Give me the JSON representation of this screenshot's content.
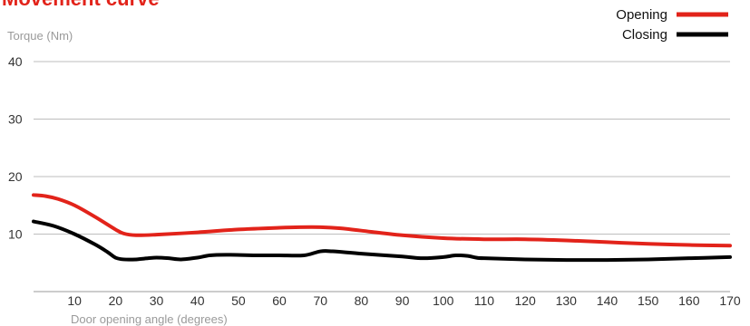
{
  "chart_data": {
    "type": "line",
    "title": "Movement curve",
    "xlabel": "Door opening angle (degrees)",
    "ylabel": "Torque (Nm)",
    "xlim": [
      0,
      170
    ],
    "ylim": [
      0,
      40
    ],
    "x_ticks": [
      10,
      20,
      30,
      40,
      50,
      60,
      70,
      80,
      90,
      100,
      110,
      120,
      130,
      140,
      150,
      160,
      170
    ],
    "y_ticks": [
      10,
      20,
      30,
      40
    ],
    "grid": "horizontal",
    "legend_position": "top-right",
    "series": [
      {
        "name": "Opening",
        "color": "#e2231a",
        "points": [
          [
            0,
            16.8
          ],
          [
            3,
            16.6
          ],
          [
            6,
            16.1
          ],
          [
            10,
            15.0
          ],
          [
            15,
            13.0
          ],
          [
            20,
            10.8
          ],
          [
            22,
            10.1
          ],
          [
            25,
            9.8
          ],
          [
            30,
            9.9
          ],
          [
            40,
            10.3
          ],
          [
            50,
            10.8
          ],
          [
            60,
            11.1
          ],
          [
            65,
            11.2
          ],
          [
            70,
            11.2
          ],
          [
            75,
            11.0
          ],
          [
            80,
            10.6
          ],
          [
            90,
            9.8
          ],
          [
            100,
            9.3
          ],
          [
            110,
            9.1
          ],
          [
            120,
            9.1
          ],
          [
            130,
            8.9
          ],
          [
            140,
            8.6
          ],
          [
            150,
            8.3
          ],
          [
            160,
            8.1
          ],
          [
            170,
            8.0
          ]
        ]
      },
      {
        "name": "Closing",
        "color": "#000000",
        "points": [
          [
            0,
            12.2
          ],
          [
            5,
            11.4
          ],
          [
            10,
            10.0
          ],
          [
            15,
            8.2
          ],
          [
            18,
            6.9
          ],
          [
            20,
            5.9
          ],
          [
            22,
            5.6
          ],
          [
            25,
            5.6
          ],
          [
            28,
            5.8
          ],
          [
            30,
            5.9
          ],
          [
            33,
            5.8
          ],
          [
            36,
            5.6
          ],
          [
            40,
            5.9
          ],
          [
            43,
            6.3
          ],
          [
            47,
            6.4
          ],
          [
            55,
            6.3
          ],
          [
            60,
            6.3
          ],
          [
            66,
            6.3
          ],
          [
            70,
            7.0
          ],
          [
            73,
            7.0
          ],
          [
            80,
            6.6
          ],
          [
            90,
            6.1
          ],
          [
            95,
            5.8
          ],
          [
            100,
            6.0
          ],
          [
            103,
            6.3
          ],
          [
            106,
            6.2
          ],
          [
            108,
            5.9
          ],
          [
            110,
            5.8
          ],
          [
            120,
            5.6
          ],
          [
            130,
            5.5
          ],
          [
            140,
            5.5
          ],
          [
            150,
            5.6
          ],
          [
            160,
            5.8
          ],
          [
            170,
            6.0
          ]
        ]
      }
    ]
  }
}
